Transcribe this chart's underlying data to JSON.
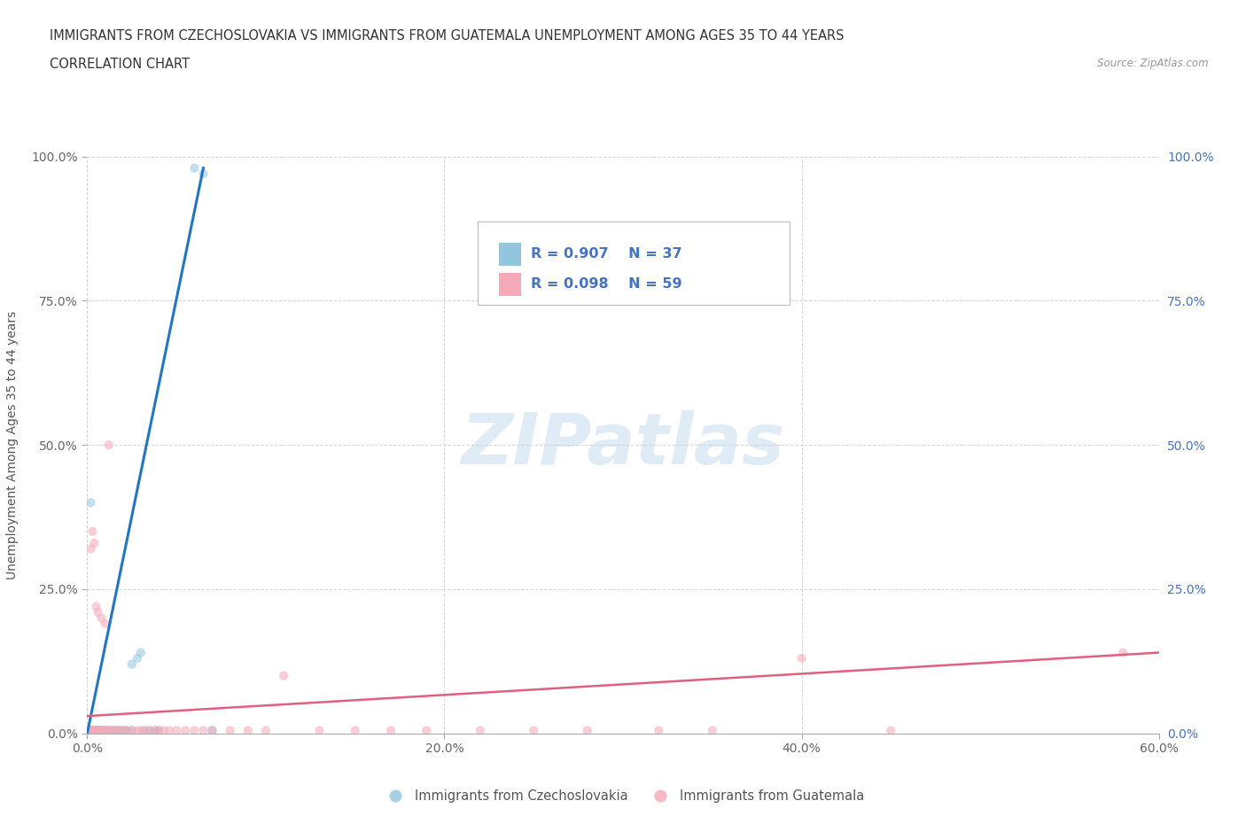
{
  "title_line1": "IMMIGRANTS FROM CZECHOSLOVAKIA VS IMMIGRANTS FROM GUATEMALA UNEMPLOYMENT AMONG AGES 35 TO 44 YEARS",
  "title_line2": "CORRELATION CHART",
  "source_text": "Source: ZipAtlas.com",
  "ylabel": "Unemployment Among Ages 35 to 44 years",
  "xlim": [
    0.0,
    0.6
  ],
  "ylim": [
    0.0,
    1.0
  ],
  "xtick_labels": [
    "0.0%",
    "20.0%",
    "40.0%",
    "60.0%"
  ],
  "xtick_vals": [
    0.0,
    0.2,
    0.4,
    0.6
  ],
  "ytick_labels": [
    "0.0%",
    "25.0%",
    "50.0%",
    "75.0%",
    "100.0%"
  ],
  "ytick_vals": [
    0.0,
    0.25,
    0.5,
    0.75,
    1.0
  ],
  "watermark": "ZIPatlas",
  "legend_entries": [
    {
      "label": "Immigrants from Czechoslovakia",
      "color": "#92c5de",
      "R": "0.907",
      "N": "37"
    },
    {
      "label": "Immigrants from Guatemala",
      "color": "#f4a9b8",
      "R": "0.098",
      "N": "59"
    }
  ],
  "blue_scatter_x": [
    0.002,
    0.003,
    0.003,
    0.004,
    0.004,
    0.005,
    0.005,
    0.005,
    0.006,
    0.007,
    0.007,
    0.008,
    0.008,
    0.009,
    0.01,
    0.01,
    0.012,
    0.013,
    0.015,
    0.015,
    0.016,
    0.018,
    0.02,
    0.022,
    0.025,
    0.025,
    0.028,
    0.03,
    0.032,
    0.035,
    0.038,
    0.04,
    0.002,
    0.003,
    0.06,
    0.065,
    0.07
  ],
  "blue_scatter_y": [
    0.005,
    0.005,
    0.005,
    0.005,
    0.005,
    0.005,
    0.005,
    0.005,
    0.005,
    0.005,
    0.005,
    0.005,
    0.005,
    0.005,
    0.005,
    0.005,
    0.005,
    0.005,
    0.005,
    0.005,
    0.005,
    0.005,
    0.005,
    0.005,
    0.005,
    0.12,
    0.13,
    0.14,
    0.005,
    0.005,
    0.005,
    0.005,
    0.4,
    0.005,
    0.98,
    0.97,
    0.005
  ],
  "pink_scatter_x": [
    0.001,
    0.002,
    0.002,
    0.003,
    0.003,
    0.004,
    0.005,
    0.005,
    0.006,
    0.007,
    0.008,
    0.009,
    0.01,
    0.01,
    0.012,
    0.013,
    0.015,
    0.016,
    0.018,
    0.02,
    0.022,
    0.025,
    0.028,
    0.03,
    0.032,
    0.035,
    0.038,
    0.04,
    0.043,
    0.046,
    0.05,
    0.055,
    0.06,
    0.065,
    0.07,
    0.08,
    0.09,
    0.1,
    0.11,
    0.13,
    0.15,
    0.17,
    0.19,
    0.22,
    0.25,
    0.28,
    0.32,
    0.35,
    0.4,
    0.45,
    0.002,
    0.003,
    0.004,
    0.005,
    0.006,
    0.008,
    0.01,
    0.012,
    0.58
  ],
  "pink_scatter_y": [
    0.005,
    0.005,
    0.005,
    0.005,
    0.005,
    0.005,
    0.005,
    0.005,
    0.005,
    0.005,
    0.005,
    0.005,
    0.005,
    0.005,
    0.005,
    0.005,
    0.005,
    0.005,
    0.005,
    0.005,
    0.005,
    0.005,
    0.005,
    0.005,
    0.005,
    0.005,
    0.005,
    0.005,
    0.005,
    0.005,
    0.005,
    0.005,
    0.005,
    0.005,
    0.005,
    0.005,
    0.005,
    0.005,
    0.1,
    0.005,
    0.005,
    0.005,
    0.005,
    0.005,
    0.005,
    0.005,
    0.005,
    0.005,
    0.13,
    0.005,
    0.32,
    0.35,
    0.33,
    0.22,
    0.21,
    0.2,
    0.19,
    0.5,
    0.14
  ],
  "blue_line_x": [
    0.0,
    0.065
  ],
  "blue_line_y": [
    0.0,
    0.98
  ],
  "pink_line_x": [
    0.0,
    0.6
  ],
  "pink_line_y": [
    0.03,
    0.14
  ],
  "background_color": "#ffffff",
  "grid_color": "#cccccc",
  "title_fontsize": 11,
  "axis_label_fontsize": 10,
  "tick_fontsize": 10,
  "scatter_alpha": 0.55,
  "scatter_size": 55
}
